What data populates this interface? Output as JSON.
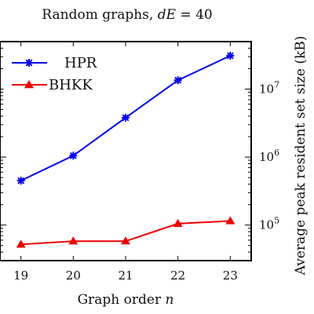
{
  "chart_data": {
    "type": "line",
    "title_prefix": "Random graphs, ",
    "title_math": "dE",
    "title_suffix": " = 40",
    "xlabel_prefix": "Graph order ",
    "xlabel_math": "n",
    "ylabel": "Average peak resident set size (kB)",
    "x": [
      19,
      20,
      21,
      22,
      23
    ],
    "xlim": [
      18.6,
      23.4
    ],
    "ylim": [
      30000,
      50000000
    ],
    "yscale": "log",
    "ytick_values": [
      100000,
      1000000,
      10000000
    ],
    "ytick_exponents": [
      "5",
      "6",
      "7"
    ],
    "legend_position": "top-left",
    "series": [
      {
        "name": "HPR",
        "color": "#0000ee",
        "marker": "asterisk",
        "values": [
          450000,
          1050000,
          3800000,
          13500000,
          31000000
        ]
      },
      {
        "name": "BHKK",
        "color": "#ee0000",
        "marker": "triangle",
        "values": [
          52000,
          58000,
          58000,
          105000,
          115000
        ]
      }
    ]
  }
}
